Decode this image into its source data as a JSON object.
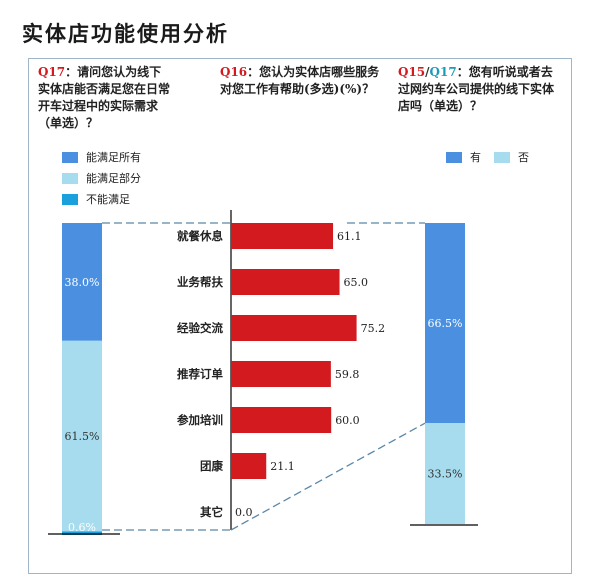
{
  "page": {
    "title": "实体店功能使用分析"
  },
  "questions": {
    "q17": {
      "num": "Q17",
      "text": "：请问您认为线下实体店能否满足您在日常开车过程中的实际需求（单选）？"
    },
    "q16": {
      "num": "Q16",
      "text": "：您认为实体店哪些服务对您工作有帮助(多选)(%)？"
    },
    "q15": {
      "num1": "Q15",
      "slash": "/",
      "num2": "Q17",
      "text": "：您有听说或者去过网约车公司提供的线下实体店吗（单选）？"
    }
  },
  "legends": {
    "left": [
      {
        "label": "能满足所有",
        "color": "#4a8fe0"
      },
      {
        "label": "能满足部分",
        "color": "#a6dcee"
      },
      {
        "label": "不能满足",
        "color": "#1aa0dc"
      }
    ],
    "right": [
      {
        "label": "有",
        "color": "#4a8fe0"
      },
      {
        "label": "否",
        "color": "#a6dcee"
      }
    ]
  },
  "colors": {
    "bar": "#d21a1f",
    "dash": "#5b87a8",
    "axis": "#000000",
    "frame": "#9fb6c8"
  },
  "chart_data": [
    {
      "type": "bar",
      "stacked": true,
      "orientation": "vertical",
      "series": [
        {
          "name": "能满足所有",
          "values": [
            38.0
          ],
          "labels": [
            "38.0%"
          ]
        },
        {
          "name": "能满足部分",
          "values": [
            61.5
          ],
          "labels": [
            "61.5%"
          ]
        },
        {
          "name": "不能满足",
          "values": [
            0.6
          ],
          "labels": [
            "0.6%"
          ]
        }
      ],
      "ylim": [
        0,
        100
      ]
    },
    {
      "type": "bar",
      "orientation": "horizontal",
      "categories": [
        "就餐休息",
        "业务帮扶",
        "经验交流",
        "推荐订单",
        "参加培训",
        "团康",
        "其它"
      ],
      "values": [
        61.1,
        65.0,
        75.2,
        59.8,
        60.0,
        21.1,
        0.0
      ],
      "value_labels": [
        "61.1",
        "65.0",
        "75.2",
        "59.8",
        "60.0",
        "21.1",
        "0.0"
      ],
      "xlim": [
        0,
        100
      ]
    },
    {
      "type": "bar",
      "stacked": true,
      "orientation": "vertical",
      "series": [
        {
          "name": "有",
          "values": [
            66.5
          ],
          "labels": [
            "66.5%"
          ]
        },
        {
          "name": "否",
          "values": [
            33.5
          ],
          "labels": [
            "33.5%"
          ]
        }
      ],
      "ylim": [
        0,
        100
      ]
    }
  ]
}
